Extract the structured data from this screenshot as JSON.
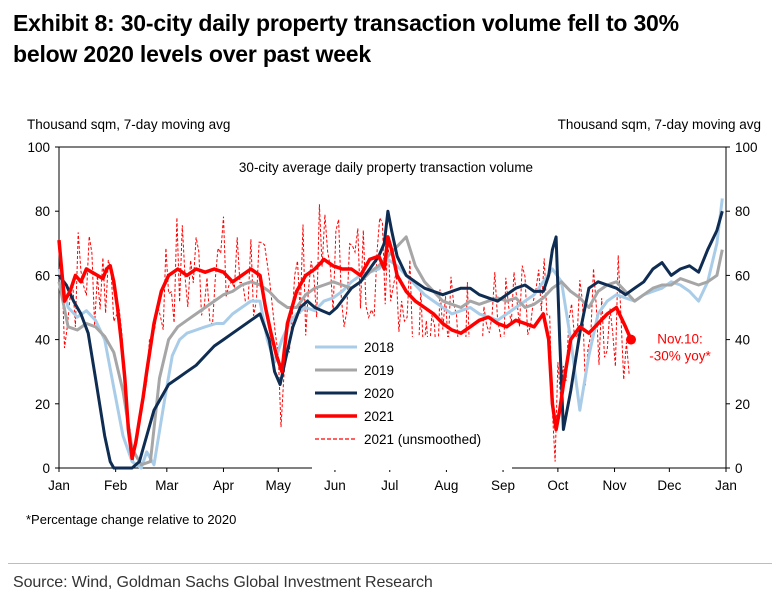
{
  "title_line1": "Exhibit 8: 30-city daily property transaction volume fell to 30%",
  "title_line2": "below 2020 levels over past week",
  "footnote": "*Percentage change relative to 2020",
  "source": "Source: Wind, Goldman Sachs Global Investment Research",
  "colors": {
    "y2018": "#a9cde8",
    "y2019": "#a6a6a6",
    "y2020": "#0f2d52",
    "y2021": "#ff0000",
    "unsmoothed": "#ff0000"
  },
  "chart_data": {
    "type": "line",
    "title": "30-city average daily property transaction volume",
    "ylabel_left": "Thousand sqm, 7-day moving avg",
    "ylabel_right": "Thousand sqm, 7-day moving avg",
    "ylim": [
      0,
      100
    ],
    "yticks": [
      "0",
      "20",
      "40",
      "60",
      "80",
      "100"
    ],
    "xlim": [
      0,
      365
    ],
    "months": [
      "Jan",
      "Feb",
      "Mar",
      "Apr",
      "May",
      "Jun",
      "Jul",
      "Aug",
      "Sep",
      "Oct",
      "Nov",
      "Dec",
      "Jan"
    ],
    "month_positions": [
      0,
      31,
      59,
      90,
      120,
      151,
      181,
      212,
      243,
      273,
      304,
      334,
      365
    ],
    "legend": [
      "2018",
      "2019",
      "2020",
      "2021",
      "2021 (unsmoothed)"
    ],
    "annotation": {
      "line1": "Nov.10:",
      "line2": "-30% yoy*",
      "x": 313,
      "y": 40
    },
    "series": [
      {
        "name": "2018",
        "key": "y2018",
        "x": [
          0,
          5,
          10,
          15,
          20,
          25,
          30,
          35,
          40,
          45,
          48,
          52,
          58,
          62,
          66,
          70,
          75,
          80,
          86,
          90,
          95,
          100,
          105,
          110,
          114,
          118,
          122,
          126,
          130,
          135,
          140,
          145,
          150,
          155,
          160,
          165,
          170,
          175,
          180,
          185,
          190,
          195,
          200,
          205,
          210,
          215,
          220,
          225,
          230,
          235,
          240,
          245,
          250,
          255,
          260,
          265,
          270,
          275,
          280,
          285,
          290,
          295,
          300,
          305,
          310,
          315,
          320,
          325,
          330,
          335,
          340,
          345,
          350,
          355,
          360,
          363
        ],
        "y": [
          62,
          50,
          47,
          49,
          46,
          40,
          25,
          10,
          2,
          0,
          5,
          1,
          22,
          35,
          40,
          42,
          43,
          44,
          45,
          45,
          48,
          50,
          52,
          52,
          40,
          33,
          40,
          45,
          48,
          50,
          49,
          52,
          53,
          55,
          58,
          60,
          61,
          62,
          65,
          63,
          60,
          57,
          54,
          52,
          50,
          48,
          49,
          50,
          48,
          47,
          46,
          48,
          50,
          52,
          54,
          58,
          62,
          58,
          40,
          18,
          35,
          48,
          52,
          54,
          53,
          52,
          54,
          55,
          56,
          58,
          57,
          55,
          52,
          58,
          70,
          84
        ]
      },
      {
        "name": "2019",
        "key": "y2019",
        "x": [
          0,
          5,
          10,
          15,
          20,
          25,
          30,
          35,
          40,
          45,
          50,
          55,
          60,
          65,
          70,
          75,
          80,
          85,
          90,
          95,
          100,
          105,
          110,
          115,
          120,
          125,
          130,
          135,
          140,
          145,
          150,
          155,
          160,
          165,
          170,
          175,
          180,
          185,
          190,
          195,
          200,
          205,
          210,
          215,
          220,
          225,
          230,
          235,
          240,
          245,
          250,
          255,
          260,
          265,
          270,
          275,
          280,
          285,
          290,
          295,
          300,
          305,
          310,
          315,
          320,
          325,
          330,
          335,
          340,
          345,
          350,
          355,
          360,
          363
        ],
        "y": [
          58,
          44,
          43,
          45,
          44,
          41,
          36,
          24,
          6,
          1,
          2,
          28,
          40,
          44,
          46,
          48,
          50,
          52,
          54,
          55,
          57,
          58,
          57,
          55,
          52,
          50,
          50,
          54,
          56,
          57,
          58,
          57,
          56,
          58,
          61,
          63,
          66,
          69,
          72,
          63,
          58,
          55,
          52,
          51,
          50,
          52,
          51,
          52,
          53,
          52,
          53,
          50,
          51,
          53,
          56,
          58,
          55,
          53,
          50,
          55,
          57,
          58,
          55,
          52,
          54,
          56,
          57,
          57,
          59,
          58,
          57,
          58,
          60,
          68
        ]
      },
      {
        "name": "2020",
        "key": "y2020",
        "x": [
          0,
          4,
          8,
          12,
          16,
          20,
          25,
          28,
          30,
          33,
          36,
          40,
          44,
          48,
          52,
          56,
          60,
          65,
          70,
          75,
          80,
          85,
          90,
          95,
          100,
          105,
          110,
          115,
          118,
          121,
          124,
          128,
          132,
          136,
          140,
          144,
          148,
          152,
          156,
          160,
          165,
          170,
          175,
          178,
          180,
          182,
          185,
          190,
          195,
          200,
          205,
          210,
          215,
          220,
          225,
          230,
          235,
          240,
          245,
          250,
          255,
          260,
          265,
          268,
          270,
          272,
          274,
          276,
          280,
          285,
          290,
          295,
          300,
          305,
          310,
          315,
          320,
          325,
          330,
          335,
          340,
          345,
          350,
          355,
          360,
          363
        ],
        "y": [
          60,
          57,
          52,
          48,
          42,
          28,
          10,
          2,
          0,
          0,
          0,
          0,
          2,
          10,
          18,
          22,
          26,
          28,
          30,
          32,
          35,
          38,
          40,
          42,
          44,
          46,
          48,
          40,
          30,
          26,
          34,
          44,
          50,
          52,
          50,
          49,
          48,
          50,
          53,
          56,
          58,
          62,
          66,
          70,
          80,
          74,
          66,
          60,
          58,
          56,
          55,
          54,
          55,
          56,
          56,
          54,
          53,
          52,
          54,
          56,
          57,
          55,
          55,
          60,
          68,
          72,
          40,
          12,
          24,
          42,
          56,
          58,
          57,
          56,
          54,
          56,
          58,
          62,
          64,
          60,
          62,
          63,
          61,
          68,
          74,
          80
        ]
      },
      {
        "name": "2021",
        "key": "y2021",
        "x": [
          0,
          3,
          6,
          9,
          12,
          15,
          18,
          21,
          24,
          26,
          28,
          30,
          32,
          34,
          36,
          38,
          40,
          42,
          44,
          46,
          48,
          52,
          56,
          60,
          65,
          70,
          75,
          80,
          85,
          90,
          95,
          100,
          105,
          110,
          113,
          116,
          119,
          122,
          125,
          130,
          135,
          140,
          145,
          150,
          155,
          160,
          165,
          170,
          175,
          178,
          180,
          182,
          185,
          190,
          195,
          200,
          205,
          210,
          215,
          220,
          225,
          230,
          235,
          240,
          245,
          250,
          255,
          260,
          265,
          268,
          270,
          272,
          274,
          276,
          280,
          285,
          290,
          295,
          300,
          305,
          310,
          313
        ],
        "y": [
          71,
          52,
          55,
          60,
          58,
          62,
          61,
          60,
          59,
          62,
          63,
          58,
          50,
          40,
          28,
          12,
          3,
          8,
          15,
          22,
          30,
          45,
          55,
          60,
          62,
          60,
          62,
          61,
          62,
          61,
          58,
          60,
          62,
          60,
          50,
          42,
          35,
          30,
          45,
          55,
          60,
          62,
          65,
          63,
          62,
          62,
          60,
          65,
          66,
          62,
          72,
          68,
          60,
          55,
          52,
          50,
          48,
          45,
          43,
          42,
          44,
          46,
          47,
          45,
          44,
          46,
          45,
          44,
          48,
          40,
          20,
          12,
          18,
          26,
          40,
          44,
          42,
          45,
          48,
          50,
          44,
          40
        ]
      }
    ]
  }
}
